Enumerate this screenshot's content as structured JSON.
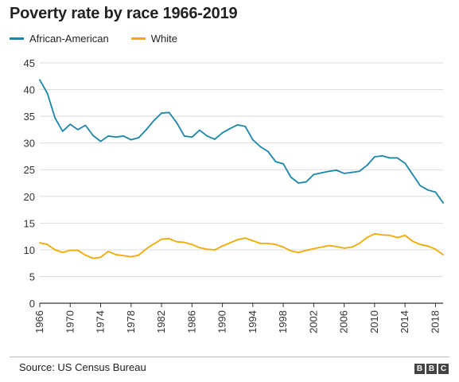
{
  "chart_data": {
    "type": "line",
    "title": "Poverty rate by race 1966-2019",
    "xlim": [
      1966,
      2019
    ],
    "ylim": [
      0,
      45
    ],
    "yticks": [
      0,
      5,
      10,
      15,
      20,
      25,
      30,
      35,
      40,
      45
    ],
    "xticks": [
      1966,
      1970,
      1974,
      1978,
      1982,
      1986,
      1990,
      1994,
      1998,
      2002,
      2006,
      2010,
      2014,
      2018
    ],
    "grid": true,
    "legend_position": "top-left",
    "x": [
      1966,
      1967,
      1968,
      1969,
      1970,
      1971,
      1972,
      1973,
      1974,
      1975,
      1976,
      1977,
      1978,
      1979,
      1980,
      1981,
      1982,
      1983,
      1984,
      1985,
      1986,
      1987,
      1988,
      1989,
      1990,
      1991,
      1992,
      1993,
      1994,
      1995,
      1996,
      1997,
      1998,
      1999,
      2000,
      2001,
      2002,
      2003,
      2004,
      2005,
      2006,
      2007,
      2008,
      2009,
      2010,
      2011,
      2012,
      2013,
      2014,
      2015,
      2016,
      2017,
      2018,
      2019
    ],
    "series": [
      {
        "name": "African-American",
        "color": "#1a86a8",
        "values": [
          41.8,
          39.3,
          34.7,
          32.2,
          33.5,
          32.5,
          33.3,
          31.4,
          30.3,
          31.3,
          31.1,
          31.3,
          30.6,
          31.0,
          32.5,
          34.2,
          35.6,
          35.7,
          33.8,
          31.3,
          31.1,
          32.4,
          31.3,
          30.7,
          31.9,
          32.7,
          33.4,
          33.1,
          30.6,
          29.3,
          28.4,
          26.5,
          26.1,
          23.6,
          22.5,
          22.7,
          24.1,
          24.4,
          24.7,
          24.9,
          24.3,
          24.5,
          24.7,
          25.8,
          27.4,
          27.6,
          27.2,
          27.2,
          26.2,
          24.1,
          22.0,
          21.2,
          20.8,
          18.8
        ]
      },
      {
        "name": "White",
        "color": "#f2a900",
        "values": [
          11.3,
          11.0,
          10.0,
          9.5,
          9.9,
          9.9,
          9.0,
          8.4,
          8.6,
          9.7,
          9.1,
          8.9,
          8.7,
          9.0,
          10.2,
          11.1,
          12.0,
          12.1,
          11.5,
          11.4,
          11.0,
          10.4,
          10.1,
          10.0,
          10.7,
          11.3,
          11.9,
          12.2,
          11.7,
          11.2,
          11.2,
          11.0,
          10.5,
          9.8,
          9.5,
          9.9,
          10.2,
          10.5,
          10.8,
          10.6,
          10.3,
          10.5,
          11.2,
          12.3,
          13.0,
          12.8,
          12.7,
          12.3,
          12.7,
          11.6,
          11.0,
          10.7,
          10.1,
          9.1
        ]
      }
    ]
  },
  "source": "Source: US Census Bureau",
  "logo_letters": [
    "B",
    "B",
    "C"
  ]
}
